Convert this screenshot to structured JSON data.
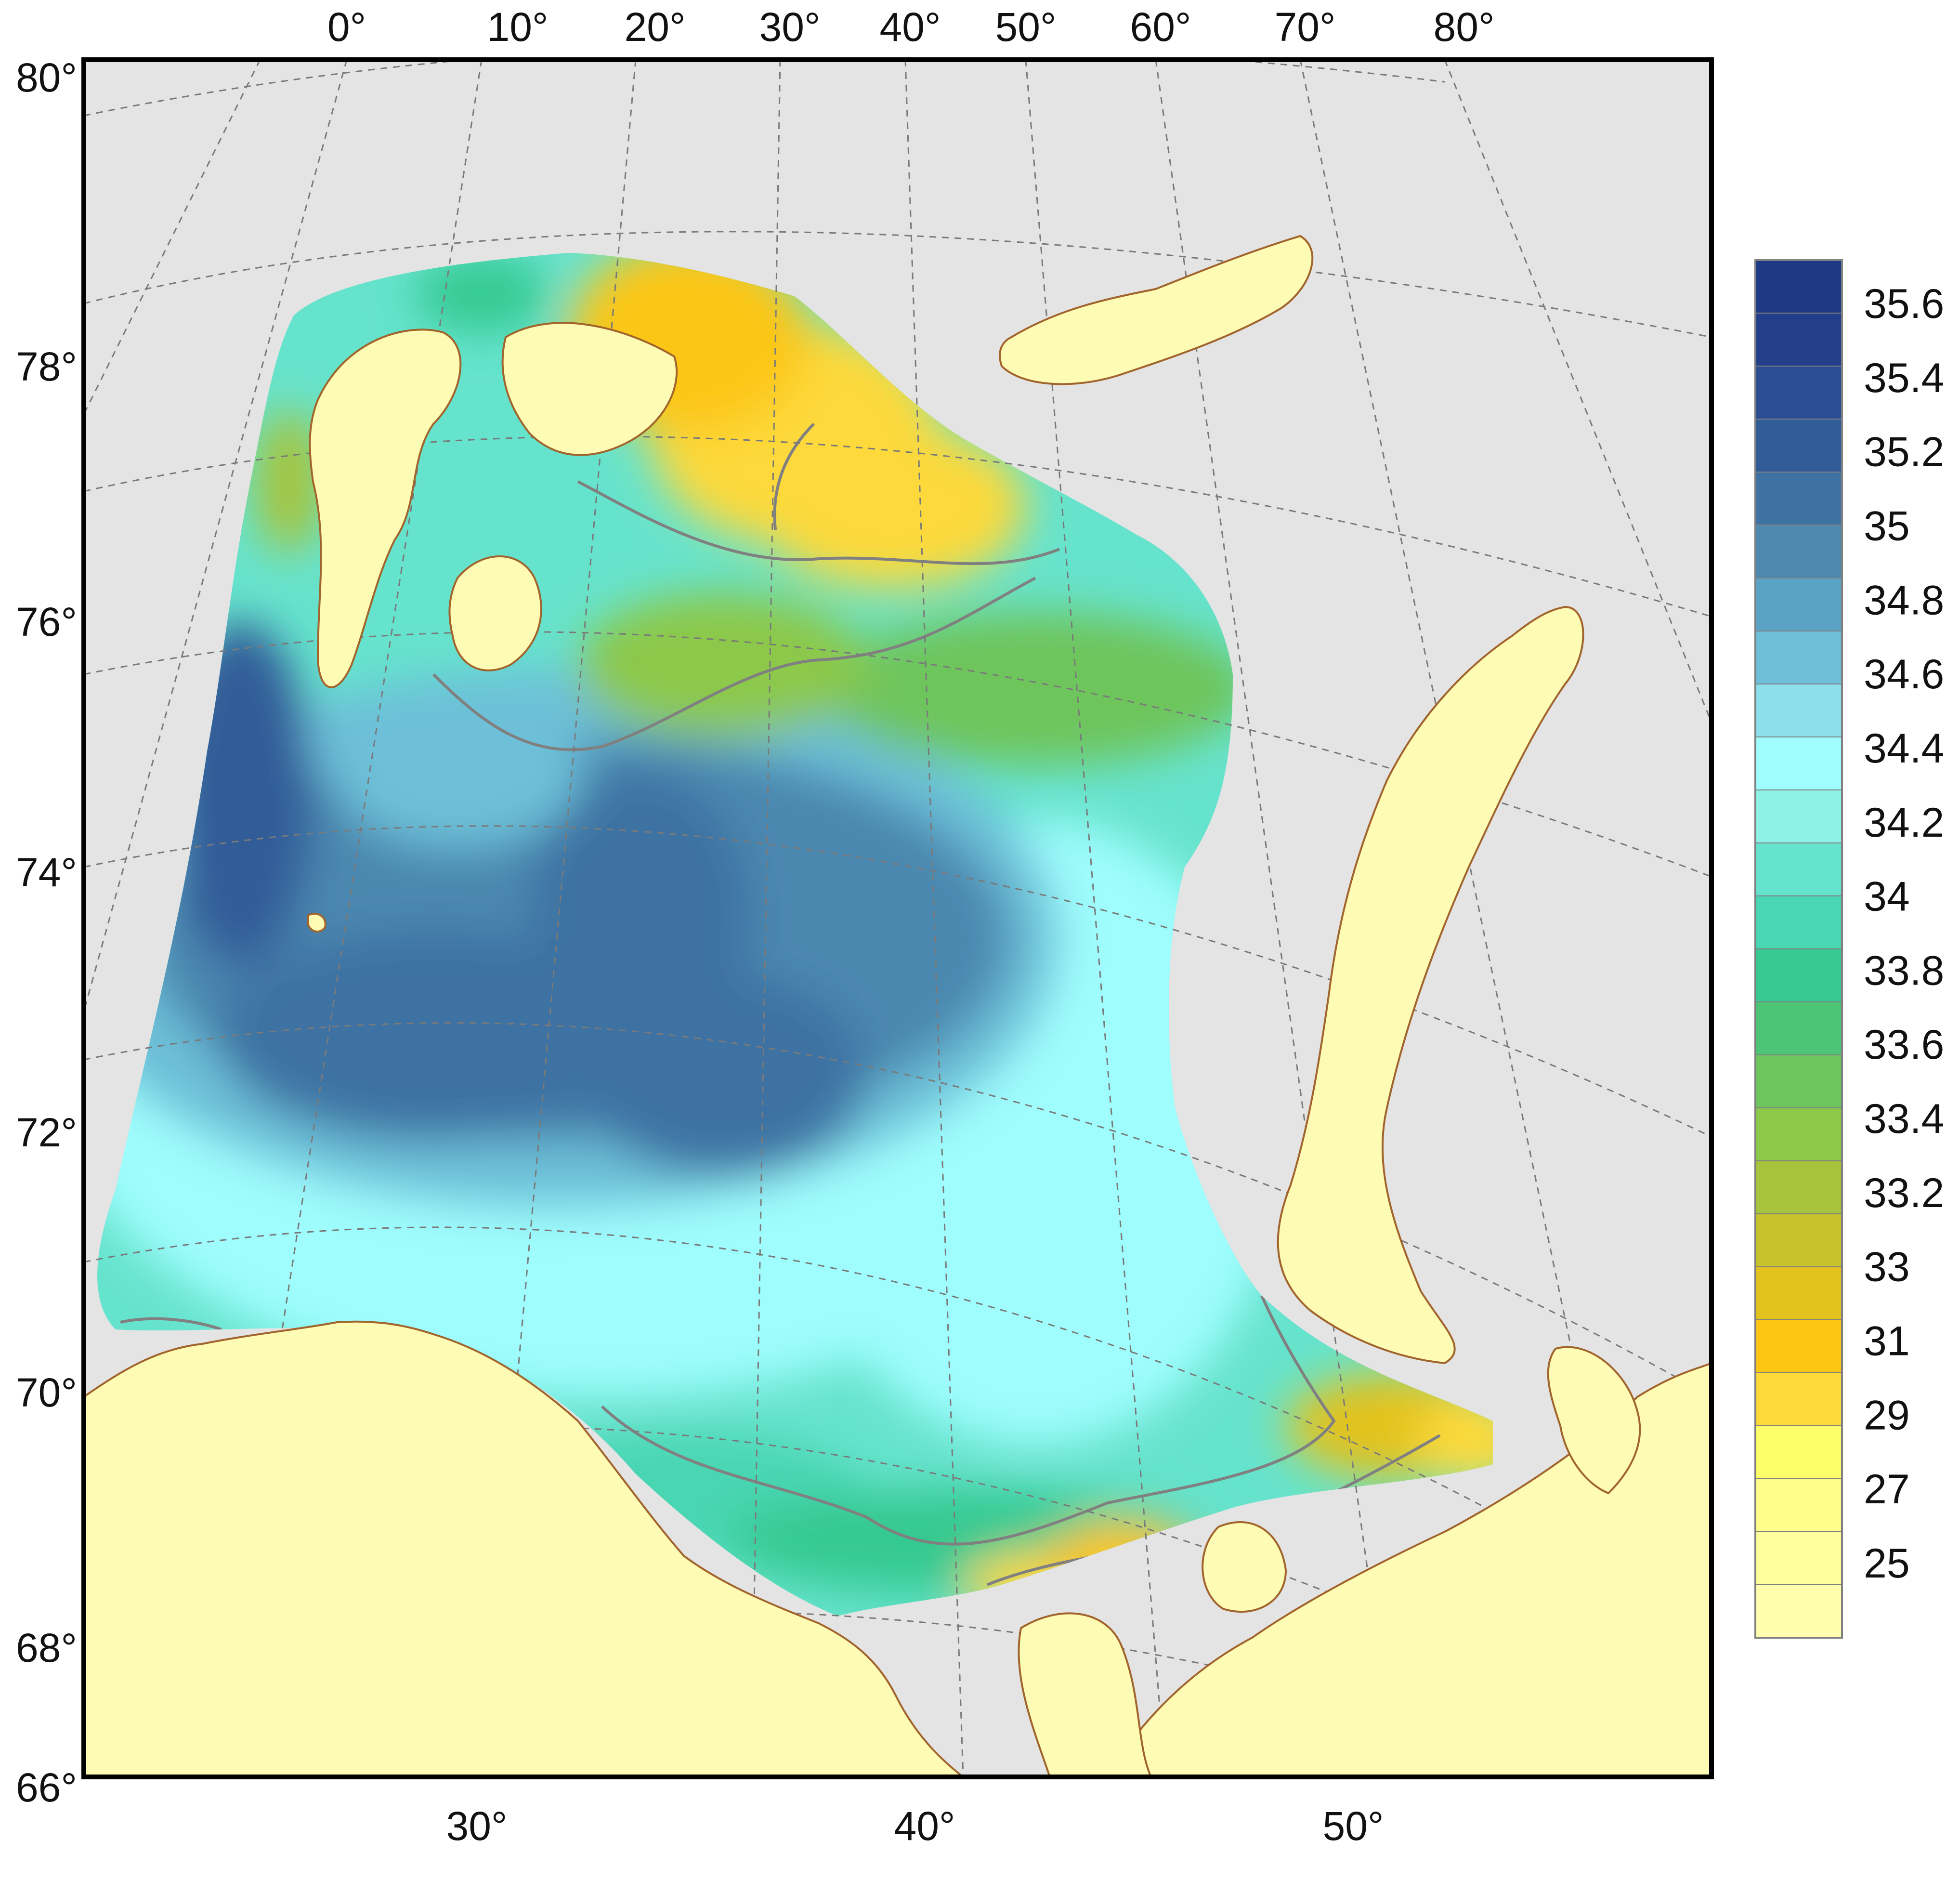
{
  "map": {
    "top_longitude_labels": [
      "0°",
      "10°",
      "20°",
      "30°",
      "40°",
      "50°",
      "60°",
      "70°",
      "80°"
    ],
    "bottom_longitude_labels": [
      "30°",
      "40°",
      "50°"
    ],
    "latitude_labels": [
      "80°",
      "78°",
      "76°",
      "74°",
      "72°",
      "70°",
      "68°",
      "66°"
    ],
    "colors": {
      "background": "#e4e4e4",
      "land": "#fefcb4",
      "coastline": "#a0642c",
      "grid": "#7a7a7a",
      "frame": "#000000"
    }
  },
  "legend": {
    "labels": [
      "35.6",
      "35.4",
      "35.2",
      "35",
      "34.8",
      "34.6",
      "34.4",
      "34.2",
      "34",
      "33.8",
      "33.6",
      "33.4",
      "33.2",
      "33",
      "31",
      "29",
      "27",
      "25"
    ],
    "colors": [
      "#1e3a84",
      "#233f8c",
      "#2a4d94",
      "#315c98",
      "#3d72a3",
      "#4c88b0",
      "#5aa3c4",
      "#6dc0d8",
      "#8be0ec",
      "#9ffdfd",
      "#8ef2e7",
      "#66e3cd",
      "#49d6b2",
      "#36c991",
      "#4dc476",
      "#6ec55b",
      "#8cc849",
      "#a7c33b",
      "#c7c32b",
      "#e3c21d",
      "#fcc612",
      "#fdd93a",
      "#fefe6a",
      "#fefe8a",
      "#fefe9c",
      "#fefeae"
    ]
  }
}
